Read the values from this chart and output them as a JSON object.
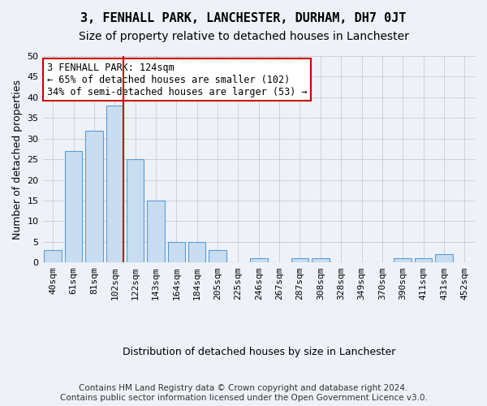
{
  "title": "3, FENHALL PARK, LANCHESTER, DURHAM, DH7 0JT",
  "subtitle": "Size of property relative to detached houses in Lanchester",
  "xlabel": "Distribution of detached houses by size in Lanchester",
  "ylabel": "Number of detached properties",
  "categories": [
    "40sqm",
    "61sqm",
    "81sqm",
    "102sqm",
    "122sqm",
    "143sqm",
    "164sqm",
    "184sqm",
    "205sqm",
    "225sqm",
    "246sqm",
    "267sqm",
    "287sqm",
    "308sqm",
    "328sqm",
    "349sqm",
    "370sqm",
    "390sqm",
    "411sqm",
    "431sqm",
    "452sqm"
  ],
  "values": [
    3,
    27,
    32,
    38,
    25,
    15,
    5,
    5,
    3,
    0,
    1,
    0,
    1,
    1,
    0,
    0,
    0,
    1,
    1,
    2,
    0
  ],
  "bar_color": "#c9ddf0",
  "bar_edge_color": "#5b9bd5",
  "vline_x": 3.425,
  "vline_color": "#cc0000",
  "ylim": [
    0,
    50
  ],
  "yticks": [
    0,
    5,
    10,
    15,
    20,
    25,
    30,
    35,
    40,
    45,
    50
  ],
  "annotation_text": "3 FENHALL PARK: 124sqm\n← 65% of detached houses are smaller (102)\n34% of semi-detached houses are larger (53) →",
  "annotation_box_color": "#ffffff",
  "annotation_box_edge_color": "#cc0000",
  "footer_line1": "Contains HM Land Registry data © Crown copyright and database right 2024.",
  "footer_line2": "Contains public sector information licensed under the Open Government Licence v3.0.",
  "background_color": "#eef2f8",
  "plot_bg_color": "#eef2f8",
  "grid_color": "#b0b8cc",
  "title_fontsize": 11,
  "subtitle_fontsize": 10,
  "axis_label_fontsize": 9,
  "tick_fontsize": 8,
  "annotation_fontsize": 8.5,
  "footer_fontsize": 7.5
}
